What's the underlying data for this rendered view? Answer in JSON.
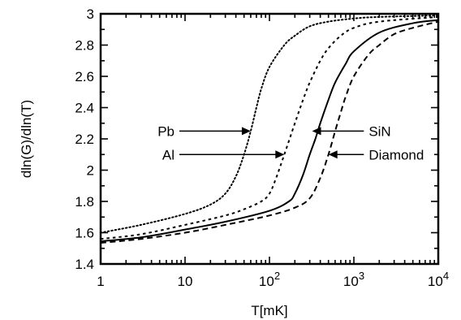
{
  "chart_data": {
    "type": "line",
    "title": "",
    "xlabel": "T[mK]",
    "ylabel": "dln(G)/dln(T)",
    "xscale": "log",
    "xlim": [
      1,
      10000
    ],
    "ylim": [
      1.4,
      3.0
    ],
    "x_ticks": [
      {
        "value": 1,
        "label": "1"
      },
      {
        "value": 10,
        "label": "10"
      },
      {
        "value": 100,
        "label": "10",
        "exp": "2"
      },
      {
        "value": 1000,
        "label": "10",
        "exp": "3"
      },
      {
        "value": 10000,
        "label": "10",
        "exp": "4"
      }
    ],
    "y_ticks": [
      {
        "value": 1.4,
        "label": "1.4"
      },
      {
        "value": 1.6,
        "label": "1.6"
      },
      {
        "value": 1.8,
        "label": "1.8"
      },
      {
        "value": 2.0,
        "label": "2"
      },
      {
        "value": 2.2,
        "label": "2.2"
      },
      {
        "value": 2.4,
        "label": "2.4"
      },
      {
        "value": 2.6,
        "label": "2.6"
      },
      {
        "value": 2.8,
        "label": "2.8"
      },
      {
        "value": 3.0,
        "label": "3"
      }
    ],
    "grid": false,
    "series": [
      {
        "name": "Pb",
        "style": "dotted",
        "x": [
          1,
          3,
          10,
          20,
          30,
          40,
          50,
          60,
          70,
          80,
          100,
          150,
          200,
          300,
          500,
          1000,
          2000,
          10000
        ],
        "y": [
          1.6,
          1.65,
          1.72,
          1.78,
          1.85,
          1.96,
          2.1,
          2.25,
          2.4,
          2.52,
          2.66,
          2.8,
          2.86,
          2.92,
          2.95,
          2.97,
          2.98,
          2.99
        ]
      },
      {
        "name": "Al",
        "style": "dashed-short",
        "x": [
          1,
          3,
          10,
          30,
          50,
          80,
          100,
          120,
          150,
          200,
          250,
          300,
          400,
          500,
          700,
          1000,
          2000,
          10000
        ],
        "y": [
          1.56,
          1.59,
          1.65,
          1.71,
          1.75,
          1.8,
          1.85,
          1.95,
          2.1,
          2.3,
          2.45,
          2.56,
          2.7,
          2.78,
          2.86,
          2.91,
          2.95,
          2.98
        ]
      },
      {
        "name": "SiN",
        "style": "solid",
        "x": [
          1,
          3,
          10,
          30,
          100,
          170,
          200,
          250,
          300,
          350,
          400,
          500,
          600,
          800,
          1000,
          2000,
          5000,
          10000
        ],
        "y": [
          1.545,
          1.57,
          1.62,
          1.67,
          1.74,
          1.8,
          1.85,
          1.97,
          2.1,
          2.2,
          2.3,
          2.45,
          2.56,
          2.68,
          2.76,
          2.88,
          2.94,
          2.96
        ]
      },
      {
        "name": "Diamond",
        "style": "dashed",
        "x": [
          1,
          3,
          10,
          30,
          100,
          200,
          300,
          400,
          500,
          600,
          700,
          800,
          1000,
          1500,
          2000,
          3000,
          5000,
          10000
        ],
        "y": [
          1.535,
          1.56,
          1.6,
          1.65,
          1.71,
          1.76,
          1.82,
          1.95,
          2.1,
          2.25,
          2.37,
          2.47,
          2.6,
          2.74,
          2.8,
          2.87,
          2.91,
          2.95
        ]
      }
    ],
    "annotations": [
      {
        "text": "Pb",
        "side": "left",
        "label_at": {
          "x": 7.5,
          "y": 2.25
        },
        "arrow_to": {
          "x": 60,
          "y": 2.25
        }
      },
      {
        "text": "Al",
        "side": "left",
        "label_at": {
          "x": 7.5,
          "y": 2.1
        },
        "arrow_to": {
          "x": 150,
          "y": 2.1
        }
      },
      {
        "text": "SiN",
        "side": "right",
        "label_at": {
          "x": 1500,
          "y": 2.25
        },
        "arrow_to": {
          "x": 320,
          "y": 2.25
        }
      },
      {
        "text": "Diamond",
        "side": "right",
        "label_at": {
          "x": 1500,
          "y": 2.1
        },
        "arrow_to": {
          "x": 500,
          "y": 2.1
        }
      }
    ]
  }
}
